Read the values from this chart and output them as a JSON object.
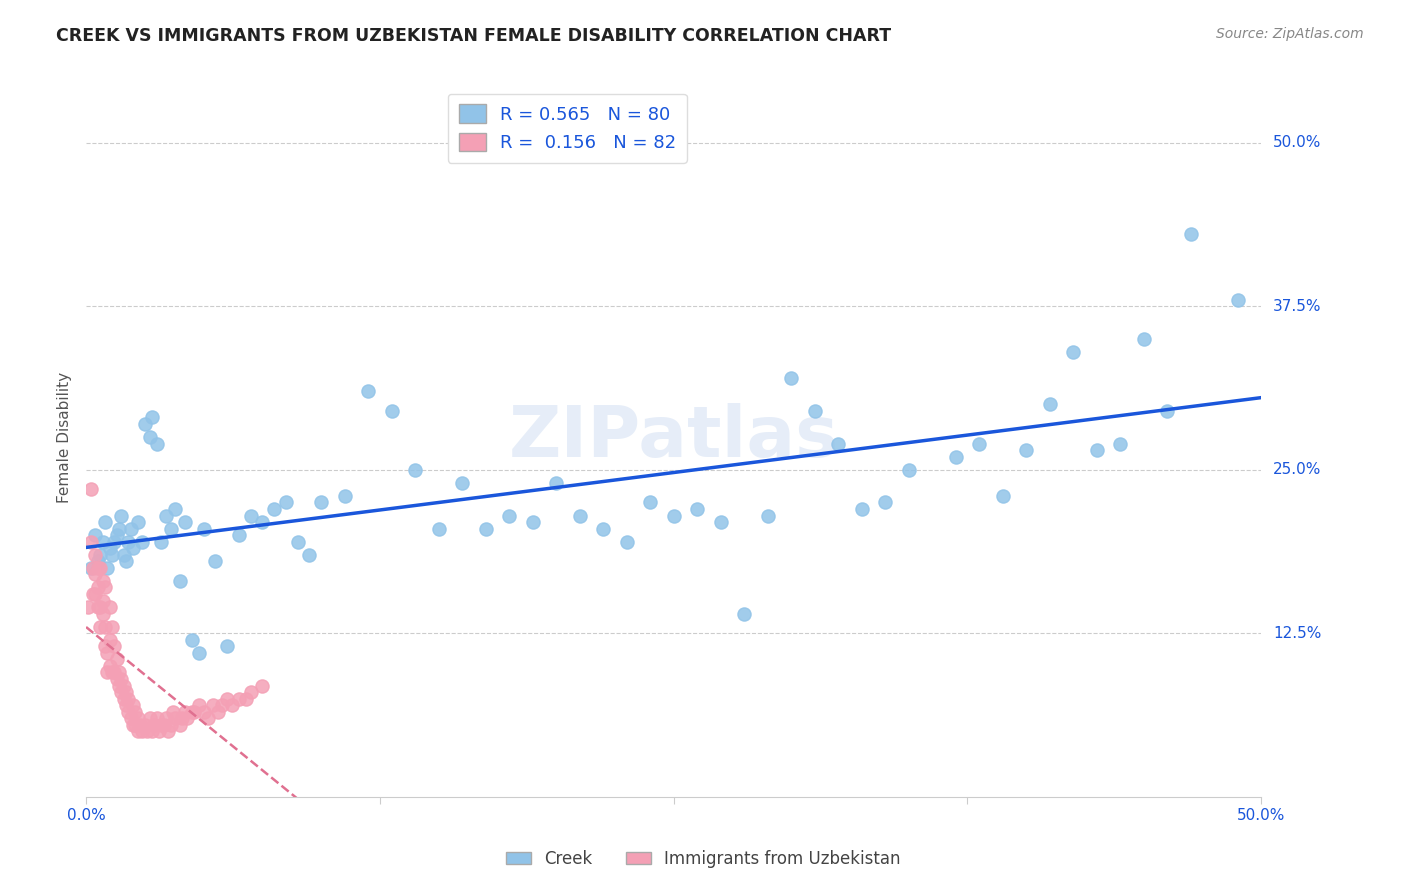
{
  "title": "CREEK VS IMMIGRANTS FROM UZBEKISTAN FEMALE DISABILITY CORRELATION CHART",
  "source": "Source: ZipAtlas.com",
  "ylabel": "Female Disability",
  "xlim": [
    0.0,
    0.5
  ],
  "ylim": [
    0.0,
    0.55
  ],
  "creek_R": 0.565,
  "creek_N": 80,
  "uzbek_R": 0.156,
  "uzbek_N": 82,
  "creek_color": "#91c3e8",
  "creek_line_color": "#1a56db",
  "uzbek_color": "#f4a0b5",
  "uzbek_line_color": "#e07090",
  "watermark": "ZIPatlas",
  "legend_label_creek": "Creek",
  "legend_label_uzbek": "Immigrants from Uzbekistan",
  "creek_x": [
    0.002,
    0.004,
    0.005,
    0.006,
    0.007,
    0.008,
    0.009,
    0.01,
    0.011,
    0.012,
    0.013,
    0.014,
    0.015,
    0.016,
    0.017,
    0.018,
    0.019,
    0.02,
    0.022,
    0.024,
    0.025,
    0.027,
    0.028,
    0.03,
    0.032,
    0.034,
    0.036,
    0.038,
    0.04,
    0.042,
    0.045,
    0.048,
    0.05,
    0.055,
    0.06,
    0.065,
    0.07,
    0.075,
    0.08,
    0.085,
    0.09,
    0.095,
    0.1,
    0.11,
    0.12,
    0.13,
    0.14,
    0.15,
    0.16,
    0.17,
    0.18,
    0.19,
    0.2,
    0.21,
    0.22,
    0.23,
    0.24,
    0.25,
    0.26,
    0.27,
    0.28,
    0.29,
    0.3,
    0.31,
    0.32,
    0.33,
    0.34,
    0.35,
    0.37,
    0.38,
    0.39,
    0.4,
    0.41,
    0.42,
    0.43,
    0.44,
    0.45,
    0.46,
    0.47,
    0.49
  ],
  "creek_y": [
    0.175,
    0.2,
    0.18,
    0.185,
    0.195,
    0.21,
    0.175,
    0.19,
    0.185,
    0.195,
    0.2,
    0.205,
    0.215,
    0.185,
    0.18,
    0.195,
    0.205,
    0.19,
    0.21,
    0.195,
    0.285,
    0.275,
    0.29,
    0.27,
    0.195,
    0.215,
    0.205,
    0.22,
    0.165,
    0.21,
    0.12,
    0.11,
    0.205,
    0.18,
    0.115,
    0.2,
    0.215,
    0.21,
    0.22,
    0.225,
    0.195,
    0.185,
    0.225,
    0.23,
    0.31,
    0.295,
    0.25,
    0.205,
    0.24,
    0.205,
    0.215,
    0.21,
    0.24,
    0.215,
    0.205,
    0.195,
    0.225,
    0.215,
    0.22,
    0.21,
    0.14,
    0.215,
    0.32,
    0.295,
    0.27,
    0.22,
    0.225,
    0.25,
    0.26,
    0.27,
    0.23,
    0.265,
    0.3,
    0.34,
    0.265,
    0.27,
    0.35,
    0.295,
    0.43,
    0.38
  ],
  "uzbek_x": [
    0.001,
    0.002,
    0.002,
    0.003,
    0.003,
    0.004,
    0.004,
    0.004,
    0.005,
    0.005,
    0.005,
    0.006,
    0.006,
    0.006,
    0.007,
    0.007,
    0.007,
    0.008,
    0.008,
    0.008,
    0.009,
    0.009,
    0.01,
    0.01,
    0.01,
    0.011,
    0.011,
    0.012,
    0.012,
    0.013,
    0.013,
    0.014,
    0.014,
    0.015,
    0.015,
    0.016,
    0.016,
    0.017,
    0.017,
    0.018,
    0.018,
    0.019,
    0.02,
    0.02,
    0.021,
    0.021,
    0.022,
    0.022,
    0.023,
    0.024,
    0.025,
    0.026,
    0.027,
    0.028,
    0.029,
    0.03,
    0.031,
    0.032,
    0.033,
    0.034,
    0.035,
    0.036,
    0.037,
    0.038,
    0.04,
    0.041,
    0.042,
    0.043,
    0.045,
    0.046,
    0.048,
    0.05,
    0.052,
    0.054,
    0.056,
    0.058,
    0.06,
    0.062,
    0.065,
    0.068,
    0.07,
    0.075
  ],
  "uzbek_y": [
    0.145,
    0.195,
    0.235,
    0.155,
    0.175,
    0.155,
    0.17,
    0.185,
    0.145,
    0.16,
    0.175,
    0.13,
    0.145,
    0.175,
    0.14,
    0.15,
    0.165,
    0.115,
    0.13,
    0.16,
    0.095,
    0.11,
    0.1,
    0.12,
    0.145,
    0.095,
    0.13,
    0.095,
    0.115,
    0.09,
    0.105,
    0.085,
    0.095,
    0.08,
    0.09,
    0.075,
    0.085,
    0.07,
    0.08,
    0.065,
    0.075,
    0.06,
    0.055,
    0.07,
    0.055,
    0.065,
    0.05,
    0.06,
    0.055,
    0.05,
    0.055,
    0.05,
    0.06,
    0.05,
    0.055,
    0.06,
    0.05,
    0.055,
    0.055,
    0.06,
    0.05,
    0.055,
    0.065,
    0.06,
    0.055,
    0.06,
    0.065,
    0.06,
    0.065,
    0.065,
    0.07,
    0.065,
    0.06,
    0.07,
    0.065,
    0.07,
    0.075,
    0.07,
    0.075,
    0.075,
    0.08,
    0.085
  ],
  "ytick_positions": [
    0.125,
    0.25,
    0.375,
    0.5
  ],
  "ytick_labels": [
    "12.5%",
    "25.0%",
    "37.5%",
    "50.0%"
  ],
  "xtick_positions": [
    0.0,
    0.125,
    0.25,
    0.375,
    0.5
  ],
  "xtick_labels": [
    "0.0%",
    "",
    "",
    "",
    "50.0%"
  ]
}
